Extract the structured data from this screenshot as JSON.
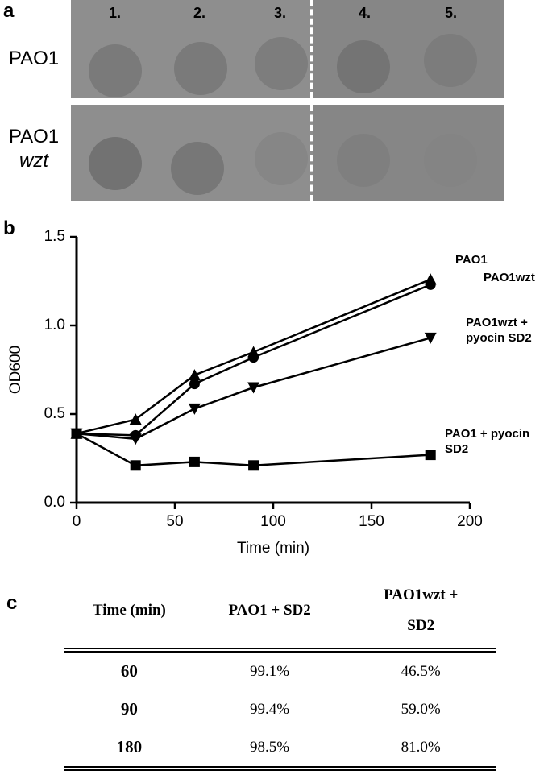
{
  "panel_a": {
    "label": "a",
    "columns": [
      "1.",
      "2.",
      "3.",
      "4.",
      "5."
    ],
    "rows": [
      [
        "PAO1"
      ],
      [
        "PAO1",
        "wzt"
      ]
    ]
  },
  "chart_data": {
    "type": "line",
    "panel_label": "b",
    "x_label": "Time (min)",
    "y_label": "OD600",
    "x": [
      0,
      30,
      60,
      90,
      180
    ],
    "series": [
      {
        "name": "PAO1",
        "color": "#000000",
        "marker": "triangle-up",
        "values": [
          0.39,
          0.47,
          0.72,
          0.85,
          1.26
        ]
      },
      {
        "name": "PAO1wzt",
        "color": "#000000",
        "marker": "circle",
        "values": [
          0.39,
          0.38,
          0.67,
          0.82,
          1.23
        ]
      },
      {
        "name": "PAO1wzt + pyocin SD2",
        "color": "#000000",
        "marker": "triangle-down",
        "values": [
          0.39,
          0.36,
          0.53,
          0.65,
          0.93
        ]
      },
      {
        "name": "PAO1 + pyocin SD2",
        "color": "#000000",
        "marker": "square",
        "values": [
          0.39,
          0.21,
          0.23,
          0.21,
          0.27
        ]
      }
    ],
    "xlim": [
      0,
      200
    ],
    "xticks": [
      0,
      50,
      100,
      150,
      200
    ],
    "ylim": [
      0,
      1.5
    ],
    "yticks": [
      {
        "value": 0,
        "label": "0.0"
      },
      0.5,
      {
        "value": 1,
        "label": "1.0"
      },
      {
        "value": 1.5,
        "label": "1.5"
      }
    ]
  },
  "table": {
    "label": "c",
    "header": [
      "Time (min)",
      "PAO1 + SD2",
      "PAO1wzt + SD2"
    ],
    "rows": [
      [
        "60",
        "99.1%",
        "46.5%"
      ],
      [
        "90",
        "99.4%",
        "59.0%"
      ],
      [
        "180",
        "98.5%",
        "81.0%"
      ]
    ]
  }
}
